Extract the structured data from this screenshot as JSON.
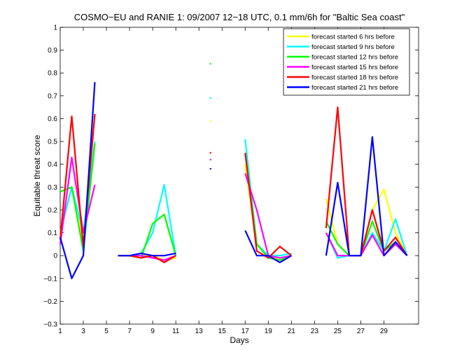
{
  "chart_data": {
    "type": "line",
    "title": "COSMO−EU and RANIE 1: 09/2007 12−18 UTC, 0.1 mm/6h for \"Baltic Sea coast\"",
    "xlabel": "Days",
    "ylabel": "Equitable threat score",
    "xlim": [
      1,
      32
    ],
    "ylim": [
      -0.3,
      1
    ],
    "xticks": [
      1,
      3,
      5,
      7,
      9,
      11,
      13,
      15,
      17,
      19,
      21,
      23,
      25,
      27,
      29
    ],
    "xtick_labels": [
      "1",
      "3",
      "5",
      "7",
      "9",
      "11",
      "13",
      "15",
      "17",
      "19",
      "21",
      "23",
      "25",
      "27",
      "29"
    ],
    "yticks": [
      -0.3,
      -0.2,
      -0.1,
      0,
      0.1,
      0.2,
      0.3,
      0.4,
      0.5,
      0.6,
      0.7,
      0.8,
      0.9,
      1
    ],
    "ytick_labels": [
      "−0.3",
      "−0.2",
      "−0.1",
      "0",
      "0.1",
      "0.2",
      "0.3",
      "0.4",
      "0.5",
      "0.6",
      "0.7",
      "0.8",
      "0.9",
      "1"
    ],
    "grid": false,
    "legend_position": "top-right",
    "x": [
      1,
      2,
      3,
      4,
      5,
      6,
      7,
      8,
      9,
      10,
      11,
      12,
      13,
      14,
      15,
      16,
      17,
      18,
      19,
      20,
      21,
      22,
      23,
      24,
      25,
      26,
      27,
      28,
      29,
      30,
      31
    ],
    "series": [
      {
        "name": "forecast started 6 hrs before",
        "color": "#ffff00",
        "values": [
          0.1,
          0.3,
          0.05,
          0.5,
          null,
          0,
          0,
          0,
          0,
          -0.02,
          -0.01,
          null,
          null,
          0.59,
          null,
          null,
          0.4,
          0.05,
          0,
          -0.02,
          0,
          null,
          null,
          0.25,
          0.05,
          0,
          0,
          0.2,
          0.29,
          0.1,
          0
        ]
      },
      {
        "name": "forecast started 9 hrs before",
        "color": "#00ffff",
        "values": [
          0.1,
          0.3,
          0.1,
          0.5,
          null,
          0,
          0,
          0.01,
          0.1,
          0.31,
          0,
          null,
          null,
          0.69,
          null,
          null,
          0.51,
          0.05,
          0,
          0,
          0.01,
          null,
          null,
          0.1,
          -0.01,
          0,
          0,
          0.1,
          0.02,
          0.16,
          0
        ]
      },
      {
        "name": "forecast started 12 hrs before",
        "color": "#00ff00",
        "values": [
          0.28,
          0.3,
          0.02,
          0.49,
          null,
          0,
          0,
          -0.01,
          0.14,
          0.18,
          0,
          null,
          null,
          0.84,
          null,
          null,
          0.45,
          0.05,
          -0.01,
          -0.02,
          0,
          null,
          null,
          0.15,
          0.05,
          0,
          0,
          0.15,
          0.02,
          0.06,
          0
        ]
      },
      {
        "name": "forecast started 15 hrs before",
        "color": "#ff00ff",
        "values": [
          0.05,
          0.43,
          0.1,
          0.31,
          null,
          0,
          0,
          0,
          -0.01,
          -0.02,
          0,
          null,
          null,
          0.42,
          null,
          null,
          0.36,
          0.2,
          0,
          -0.01,
          0,
          null,
          null,
          0.1,
          0,
          0,
          0,
          0.09,
          0,
          0.05,
          0
        ]
      },
      {
        "name": "forecast started 18 hrs before",
        "color": "#ff0000",
        "values": [
          0.07,
          0.61,
          0.04,
          0.62,
          null,
          0,
          0,
          -0.01,
          0,
          -0.03,
          0,
          null,
          null,
          0.45,
          null,
          null,
          0.45,
          0.02,
          -0.01,
          0.04,
          0,
          null,
          null,
          0.12,
          0.65,
          0,
          0,
          0.2,
          0.02,
          0.08,
          0
        ]
      },
      {
        "name": "forecast started 21 hrs before",
        "color": "#0000ff",
        "values": [
          0.08,
          -0.1,
          0,
          0.76,
          null,
          0,
          0,
          0.01,
          0,
          0,
          0.01,
          null,
          null,
          0.38,
          null,
          null,
          0.11,
          0,
          0,
          -0.03,
          0,
          null,
          null,
          0,
          0.32,
          0,
          0,
          0.52,
          0,
          0.06,
          0
        ]
      }
    ]
  }
}
